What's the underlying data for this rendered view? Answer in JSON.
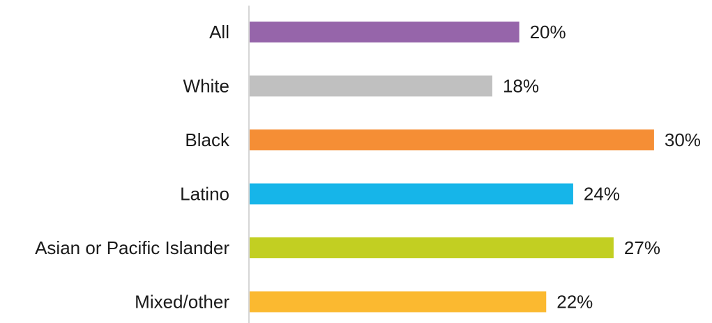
{
  "chart_data": {
    "type": "bar",
    "orientation": "horizontal",
    "categories": [
      "All",
      "White",
      "Black",
      "Latino",
      "Asian or Pacific Islander",
      "Mixed/other"
    ],
    "values": [
      20,
      18,
      30,
      24,
      27,
      22
    ],
    "value_labels": [
      "20%",
      "18%",
      "30%",
      "24%",
      "27%",
      "22%"
    ],
    "colors": [
      "#9665aa",
      "#c0c0c0",
      "#f58e35",
      "#16b5e9",
      "#c2cf22",
      "#fbb930"
    ],
    "xlim": [
      0,
      30
    ],
    "grid": false,
    "legend": "none"
  }
}
